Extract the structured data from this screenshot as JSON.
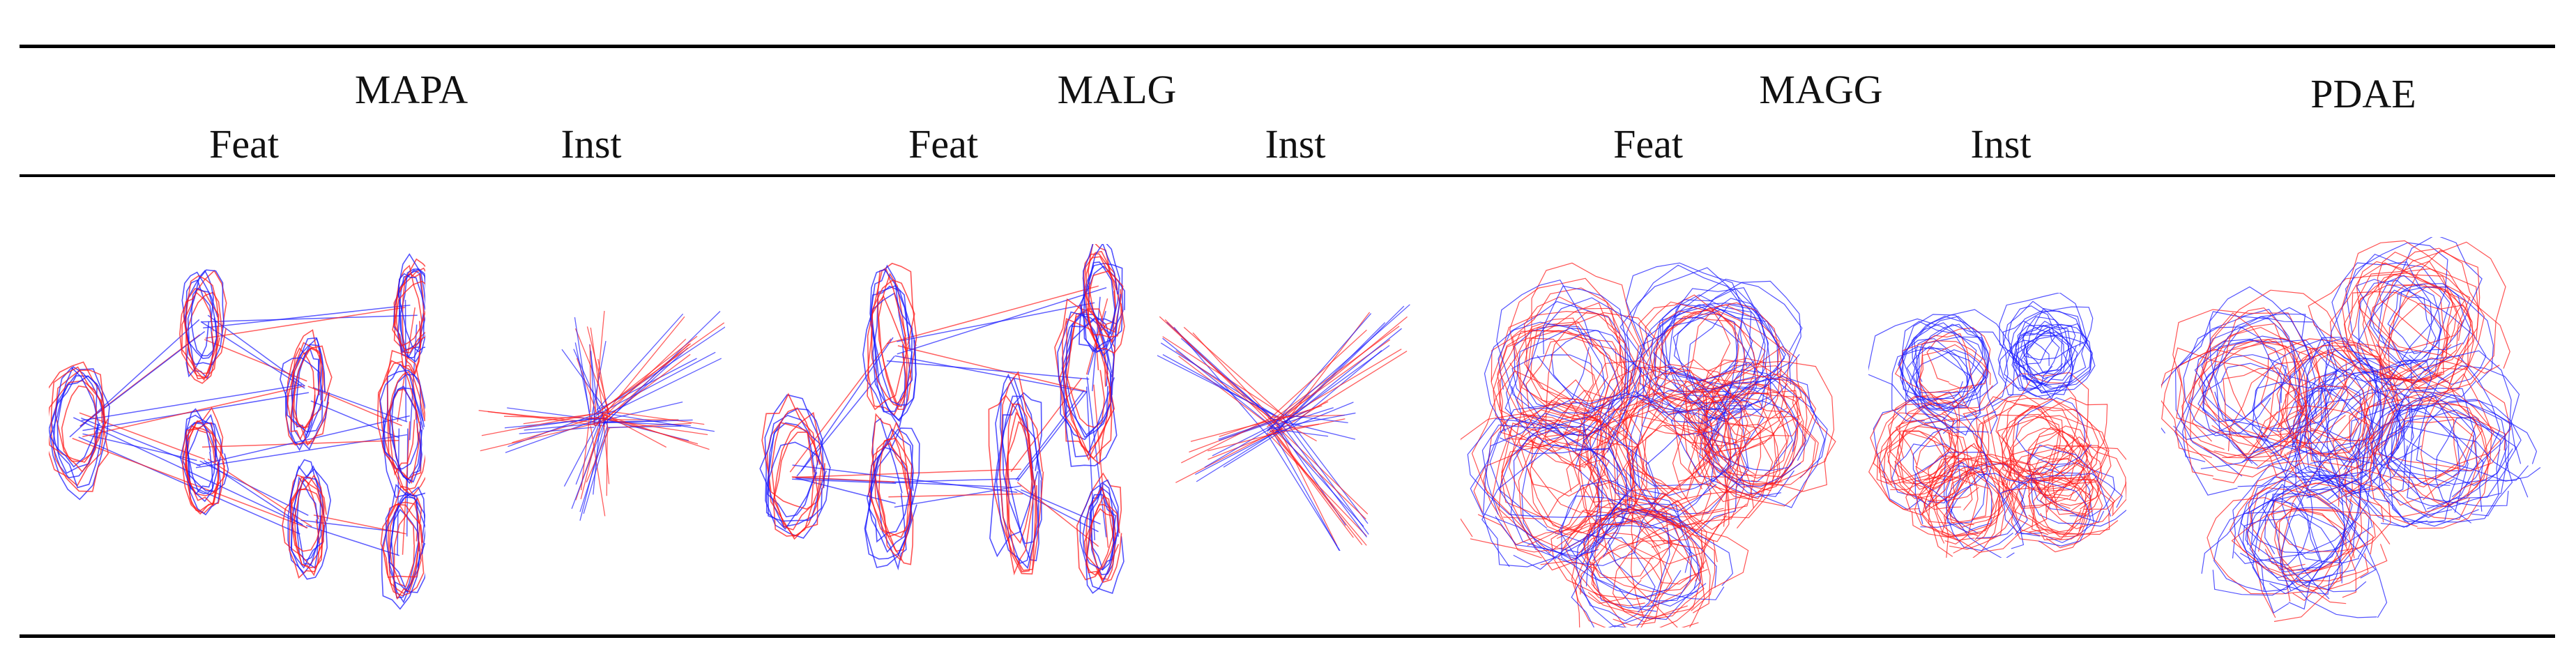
{
  "table": {
    "groups": [
      {
        "name": "MAPA",
        "sub": [
          "Feat",
          "Inst"
        ]
      },
      {
        "name": "MALG",
        "sub": [
          "Feat",
          "Inst"
        ]
      },
      {
        "name": "MAGG",
        "sub": [
          "Feat",
          "Inst"
        ]
      },
      {
        "name": "PDAE",
        "sub": []
      }
    ]
  },
  "colors": {
    "blue": "#1a1aff",
    "red": "#ff1a1a",
    "rule": "#000000"
  },
  "figures": [
    {
      "name": "mapa-feat",
      "type": "clusters-graph"
    },
    {
      "name": "mapa-inst",
      "type": "star-graph"
    },
    {
      "name": "malg-feat",
      "type": "clusters-graph"
    },
    {
      "name": "malg-inst",
      "type": "star-graph"
    },
    {
      "name": "magg-feat",
      "type": "blob"
    },
    {
      "name": "magg-inst",
      "type": "blob"
    },
    {
      "name": "pdae",
      "type": "blob"
    }
  ]
}
